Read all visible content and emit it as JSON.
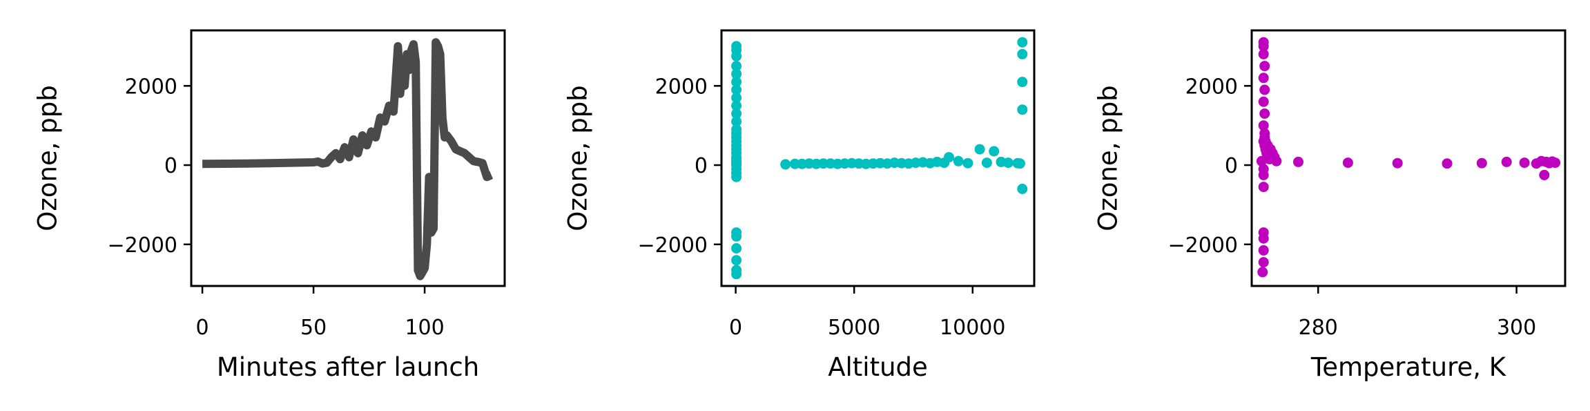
{
  "chart_data": [
    {
      "type": "line",
      "xlabel": "Minutes after launch",
      "ylabel": "Ozone, ppb",
      "xlim": [
        -5,
        136
      ],
      "ylim": [
        -3050,
        3400
      ],
      "xticks": [
        0,
        50,
        100
      ],
      "xtick_labels": [
        "0",
        "50",
        "100"
      ],
      "yticks": [
        -2000,
        0,
        2000
      ],
      "ytick_labels": [
        "−2000",
        "0",
        "2000"
      ],
      "grid": false,
      "color": "#4a4a4a",
      "series": [
        {
          "x": [
            0,
            10,
            20,
            30,
            40,
            50,
            52,
            54,
            56,
            58,
            60,
            62,
            64,
            66,
            68,
            70,
            72,
            74,
            76,
            78,
            80,
            82,
            84,
            86,
            88,
            89,
            90,
            91,
            92,
            93,
            94,
            95,
            96,
            97,
            98,
            99,
            100,
            101,
            102,
            103,
            104,
            105,
            106,
            107,
            108,
            109,
            110,
            112,
            114,
            116,
            118,
            120,
            122,
            124,
            126,
            128,
            130
          ],
          "y": [
            30,
            35,
            40,
            50,
            60,
            70,
            90,
            40,
            60,
            200,
            300,
            150,
            450,
            200,
            650,
            300,
            750,
            500,
            850,
            700,
            1200,
            1100,
            1500,
            1350,
            3000,
            1800,
            2650,
            2000,
            2800,
            2400,
            2900,
            3050,
            2600,
            -2650,
            -2800,
            -2700,
            -2600,
            -2000,
            -300,
            -1700,
            -1600,
            3100,
            3000,
            2800,
            1200,
            700,
            750,
            600,
            400,
            350,
            300,
            200,
            100,
            80,
            50,
            -300,
            -250
          ]
        }
      ]
    },
    {
      "type": "scatter",
      "xlabel": "Altitude",
      "ylabel": "Ozone, ppb",
      "xlim": [
        -600,
        12600
      ],
      "ylim": [
        -3050,
        3400
      ],
      "xticks": [
        0,
        5000,
        10000
      ],
      "xtick_labels": [
        "0",
        "5000",
        "10000"
      ],
      "yticks": [
        -2000,
        0,
        2000
      ],
      "ytick_labels": [
        "−2000",
        "0",
        "2000"
      ],
      "grid": false,
      "color": "#00bfbf",
      "series": [
        {
          "x": [
            30,
            30,
            30,
            30,
            30,
            30,
            30,
            30,
            30,
            30,
            30,
            30,
            30,
            30,
            30,
            30,
            30,
            30,
            30,
            30,
            30,
            30,
            30,
            30,
            30,
            30,
            30,
            30,
            30,
            30,
            30,
            30,
            30,
            2100,
            2500,
            2800,
            3100,
            3400,
            3700,
            4000,
            4300,
            4600,
            4900,
            5200,
            5500,
            5800,
            6100,
            6400,
            6700,
            7000,
            7300,
            7600,
            7900,
            8200,
            8500,
            8800,
            9000,
            9400,
            9800,
            10300,
            10600,
            10900,
            11200,
            11500,
            11900,
            12000,
            12100,
            12100,
            12100,
            12100,
            12100
          ],
          "y": [
            3000,
            2900,
            2750,
            2500,
            2300,
            2100,
            1900,
            1700,
            1500,
            1300,
            1100,
            900,
            800,
            700,
            600,
            500,
            400,
            300,
            200,
            100,
            0,
            -100,
            -200,
            -300,
            -200,
            -1700,
            -1800,
            -2100,
            -2400,
            -2650,
            -2750,
            50,
            150,
            20,
            30,
            30,
            40,
            30,
            40,
            40,
            30,
            40,
            50,
            40,
            30,
            40,
            50,
            40,
            60,
            50,
            40,
            60,
            70,
            50,
            80,
            60,
            200,
            100,
            50,
            400,
            60,
            350,
            80,
            60,
            50,
            40,
            3100,
            2800,
            2100,
            1400,
            -600
          ]
        }
      ]
    },
    {
      "type": "scatter",
      "xlabel": "Temperature, K",
      "ylabel": "Ozone, ppb",
      "xlim": [
        273.3,
        304.9
      ],
      "ylim": [
        -3050,
        3400
      ],
      "xticks": [
        280,
        300
      ],
      "xtick_labels": [
        "280",
        "300"
      ],
      "yticks": [
        -2000,
        0,
        2000
      ],
      "ytick_labels": [
        "−2000",
        "0",
        "2000"
      ],
      "grid": false,
      "color": "#bf00bf",
      "series": [
        {
          "x": [
            274.5,
            274.5,
            274.5,
            274.6,
            274.5,
            274.6,
            274.5,
            274.6,
            274.5,
            274.6,
            274.5,
            274.6,
            274.7,
            274.8,
            274.9,
            275.0,
            275.1,
            274.6,
            274.7,
            274.9,
            275.2,
            275.4,
            275.6,
            275.8,
            274.5,
            274.5,
            274.5,
            274.5,
            274.5,
            274.5,
            274.5,
            274.4,
            274.3,
            278.0,
            283.0,
            288.0,
            293.0,
            296.5,
            299.0,
            300.8,
            302.0,
            302.5,
            303.0,
            303.3,
            303.6,
            303.9,
            302.8
          ],
          "y": [
            3100,
            3000,
            2800,
            2500,
            2200,
            1900,
            1600,
            1300,
            1000,
            800,
            600,
            500,
            400,
            300,
            250,
            200,
            150,
            700,
            600,
            500,
            400,
            300,
            200,
            100,
            -100,
            -250,
            -550,
            -1700,
            -1850,
            -2150,
            -2450,
            -2700,
            100,
            80,
            60,
            50,
            40,
            50,
            80,
            60,
            40,
            100,
            80,
            50,
            90,
            60,
            -250
          ]
        }
      ]
    }
  ]
}
